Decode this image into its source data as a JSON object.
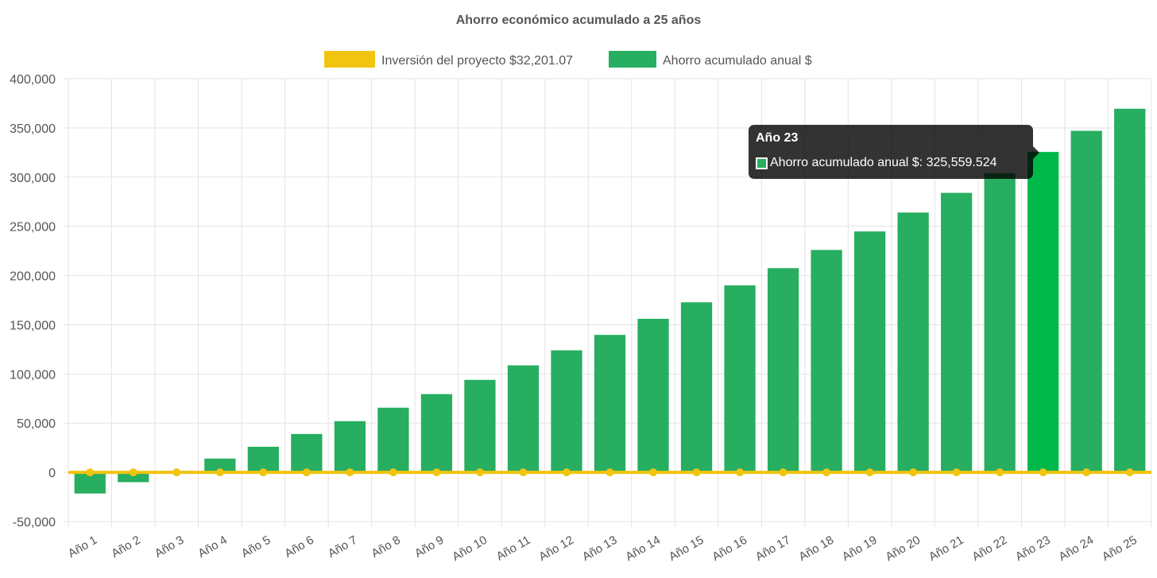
{
  "chart_data": {
    "type": "bar",
    "title": "Ahorro económico acumulado a 25 años",
    "categories": [
      "Año 1",
      "Año 2",
      "Año 3",
      "Año 4",
      "Año 5",
      "Año 6",
      "Año 7",
      "Año 8",
      "Año 9",
      "Año 10",
      "Año 11",
      "Año 12",
      "Año 13",
      "Año 14",
      "Año 15",
      "Año 16",
      "Año 17",
      "Año 18",
      "Año 19",
      "Año 20",
      "Año 21",
      "Año 22",
      "Año 23",
      "Año 24",
      "Año 25"
    ],
    "series": [
      {
        "name": "Inversión del proyecto $32,201.07",
        "type": "line",
        "color": "#f1c40f",
        "values": [
          0,
          0,
          0,
          0,
          0,
          0,
          0,
          0,
          0,
          0,
          0,
          0,
          0,
          0,
          0,
          0,
          0,
          0,
          0,
          0,
          0,
          0,
          0,
          0,
          0
        ]
      },
      {
        "name": "Ahorro acumulado anual $",
        "type": "bar",
        "color": "#27ae60",
        "highlight_color": "#00b84a",
        "values": [
          -21500,
          -10000,
          1500,
          14000,
          26000,
          39000,
          52000,
          65700,
          79500,
          94000,
          108700,
          124000,
          139700,
          156000,
          172800,
          190000,
          207500,
          226000,
          244800,
          264000,
          284000,
          304000,
          325559.524,
          347000,
          369500
        ]
      }
    ],
    "yticks": [
      "400,000",
      "350,000",
      "300,000",
      "250,000",
      "200,000",
      "150,000",
      "100,000",
      "50,000",
      "0",
      "-50,000"
    ],
    "ylim": [
      -50000,
      400000
    ],
    "grid": true,
    "legend_position": "top",
    "highlighted_index": 22
  },
  "tooltip": {
    "title": "Año 23",
    "label": "Ahorro acumulado anual $: 325,559.524"
  }
}
